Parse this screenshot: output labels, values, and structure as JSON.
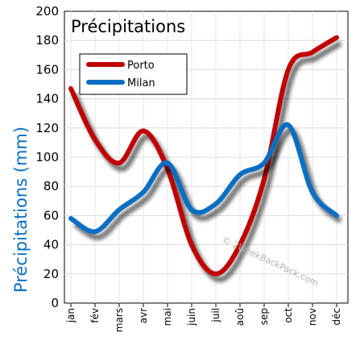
{
  "chart_data": {
    "type": "line",
    "title": "Précipitations",
    "ylabel": "Précipitations (mm)",
    "xlabel": "",
    "ylim": [
      0,
      200
    ],
    "yticks": [
      0,
      20,
      40,
      60,
      80,
      100,
      120,
      140,
      160,
      180,
      200
    ],
    "categories": [
      "jan",
      "fév",
      "mars",
      "avr",
      "mai",
      "juin",
      "juil",
      "aoû",
      "sep",
      "oct",
      "nov",
      "déc"
    ],
    "grid": true,
    "legend_position": "top-left",
    "series": [
      {
        "name": "Porto",
        "color": "#c00000",
        "values": [
          147,
          112,
          96,
          118,
          92,
          40,
          20,
          40,
          85,
          160,
          172,
          182
        ]
      },
      {
        "name": "Milan",
        "color": "#0a6fc2",
        "values": [
          58,
          49,
          64,
          76,
          96,
          64,
          68,
          88,
          96,
          122,
          76,
          60
        ]
      }
    ]
  },
  "watermark": "© 2WeekBackPack.com"
}
